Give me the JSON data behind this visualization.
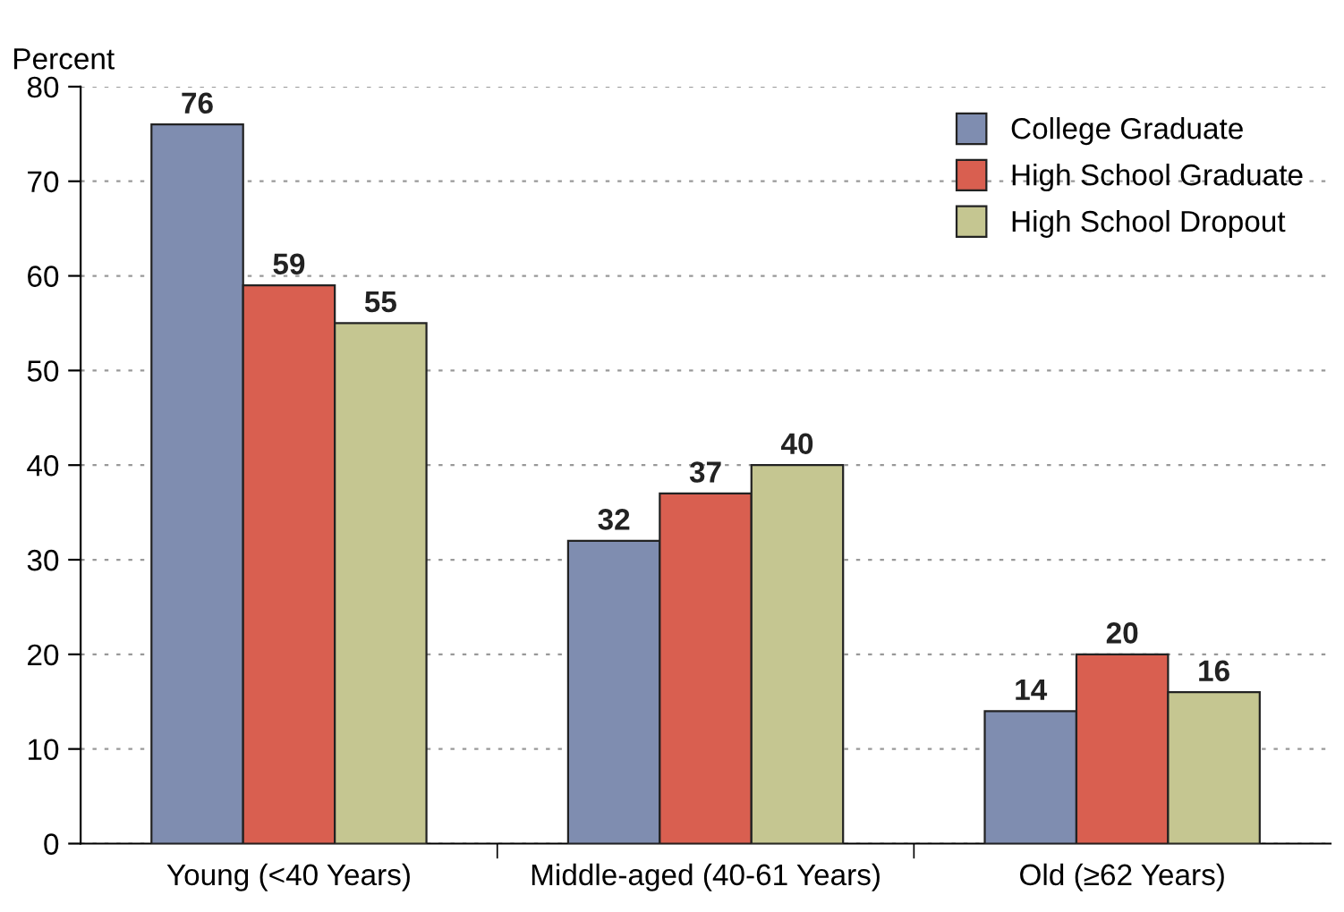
{
  "chart_data": {
    "type": "bar",
    "ylabel": "Percent",
    "categories": [
      "Young (<40 Years)",
      "Middle-aged (40-61 Years)",
      "Old (≥62 Years)"
    ],
    "series": [
      {
        "name": "College Graduate",
        "color": "#7f8db0",
        "values": [
          76,
          32,
          14
        ]
      },
      {
        "name": "High School Graduate",
        "color": "#d95f50",
        "values": [
          59,
          37,
          20
        ]
      },
      {
        "name": "High School Dropout",
        "color": "#c5c691",
        "values": [
          55,
          40,
          16
        ]
      }
    ],
    "ylim": [
      0,
      80
    ],
    "yticks": [
      0,
      10,
      20,
      30,
      40,
      50,
      60,
      70,
      80
    ],
    "grid": "y",
    "legend": "top right",
    "data_labels": true
  }
}
